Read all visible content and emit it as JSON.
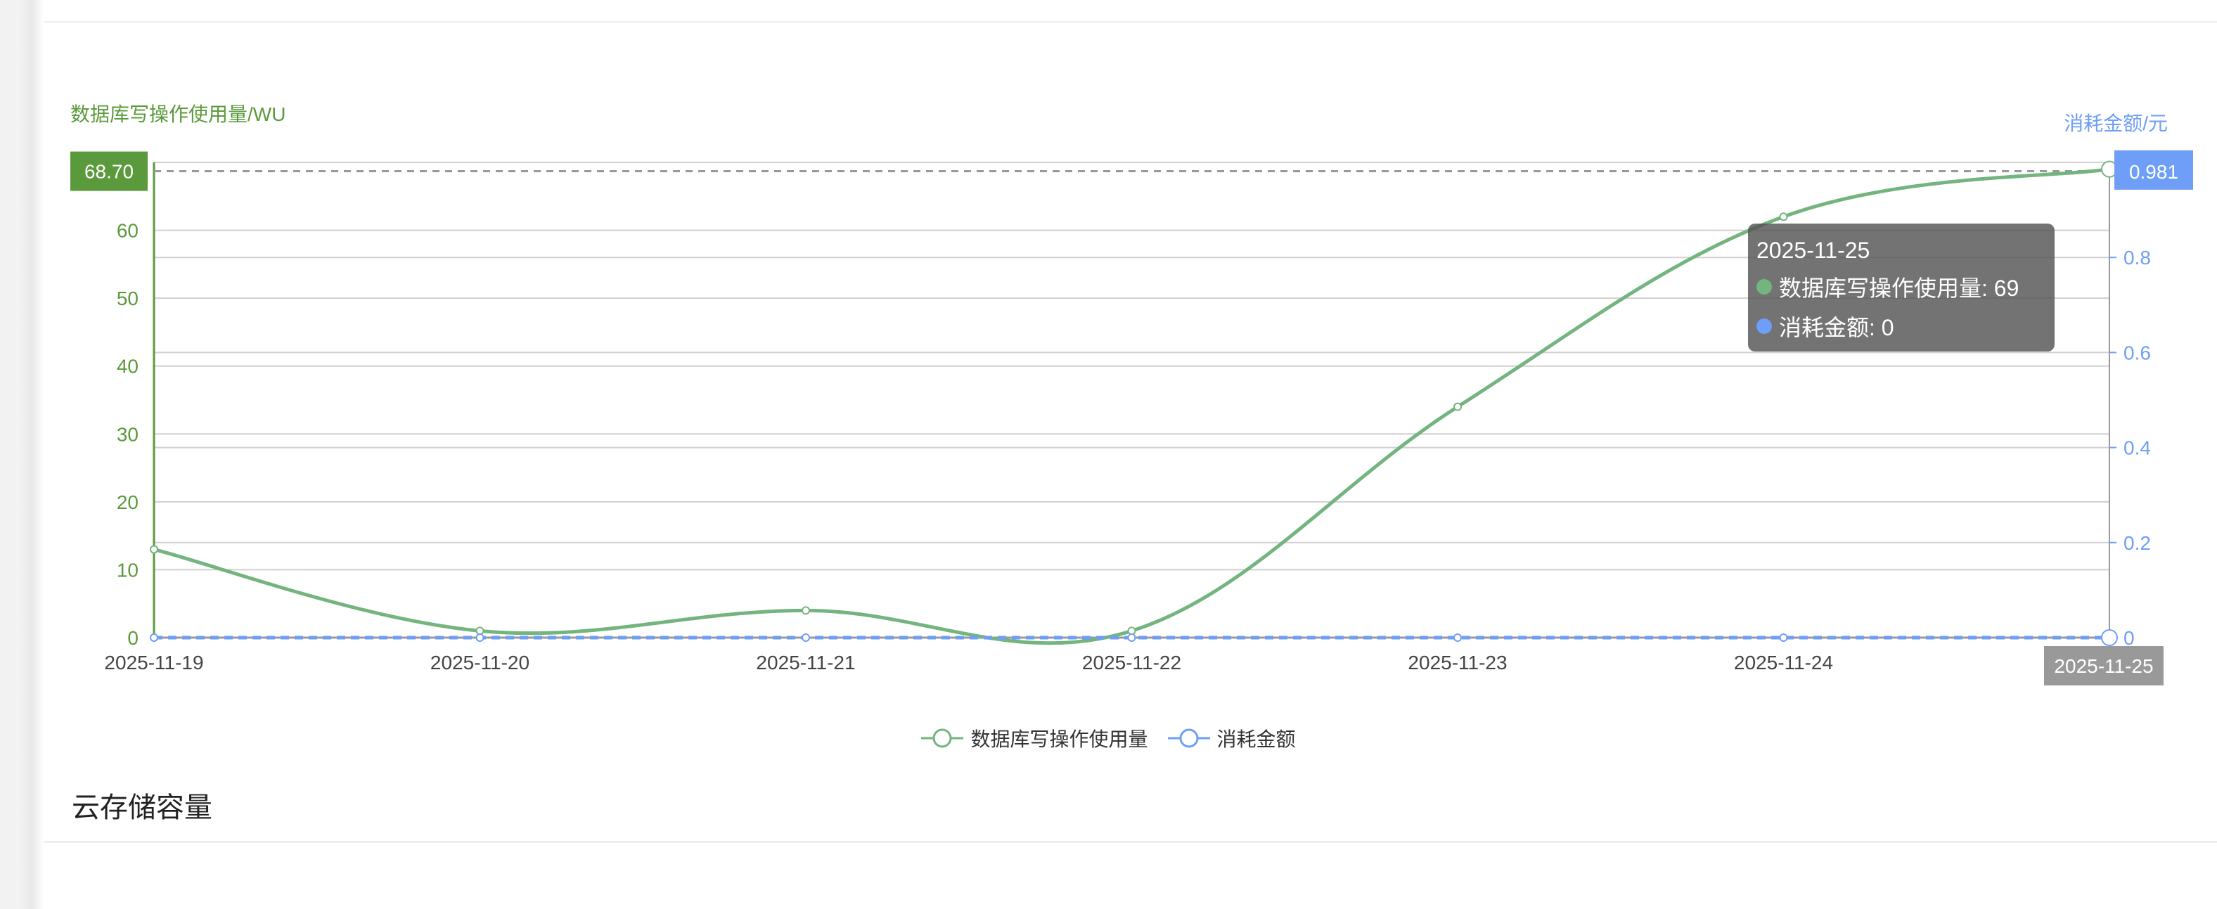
{
  "section_title": "云存储容量",
  "colors": {
    "series1": "#73b47f",
    "series2": "#6e9ef7",
    "left_axis": "#5b9a3c",
    "right_axis": "#6e9ef7"
  },
  "chart_data": {
    "type": "line",
    "categories": [
      "2025-11-19",
      "2025-11-20",
      "2025-11-21",
      "2025-11-22",
      "2025-11-23",
      "2025-11-24",
      "2025-11-25"
    ],
    "y_left": {
      "label": "数据库写操作使用量/WU",
      "range": [
        0,
        70
      ],
      "ticks": [
        0,
        10,
        20,
        30,
        40,
        50,
        60
      ]
    },
    "y_right": {
      "label": "消耗金额/元",
      "range": [
        0,
        1.0
      ],
      "ticks": [
        "0",
        "0.2",
        "0.4",
        "0.6",
        "0.8"
      ]
    },
    "series": [
      {
        "name": "数据库写操作使用量",
        "axis": "left",
        "smooth": true,
        "values": [
          13,
          1,
          4,
          1,
          34,
          62,
          69
        ]
      },
      {
        "name": "消耗金额",
        "axis": "right",
        "dashed": true,
        "values": [
          0,
          0,
          0,
          0,
          0,
          0,
          0
        ]
      }
    ],
    "grid": true,
    "legend": "bottom-center",
    "axis_pointer": {
      "x_label": "2025-11-25",
      "left_label": "68.70",
      "right_label": "0.981"
    },
    "tooltip": {
      "title": "2025-11-25",
      "rows": [
        {
          "label": "数据库写操作使用量: 69"
        },
        {
          "label": "消耗金额: 0"
        }
      ]
    }
  }
}
